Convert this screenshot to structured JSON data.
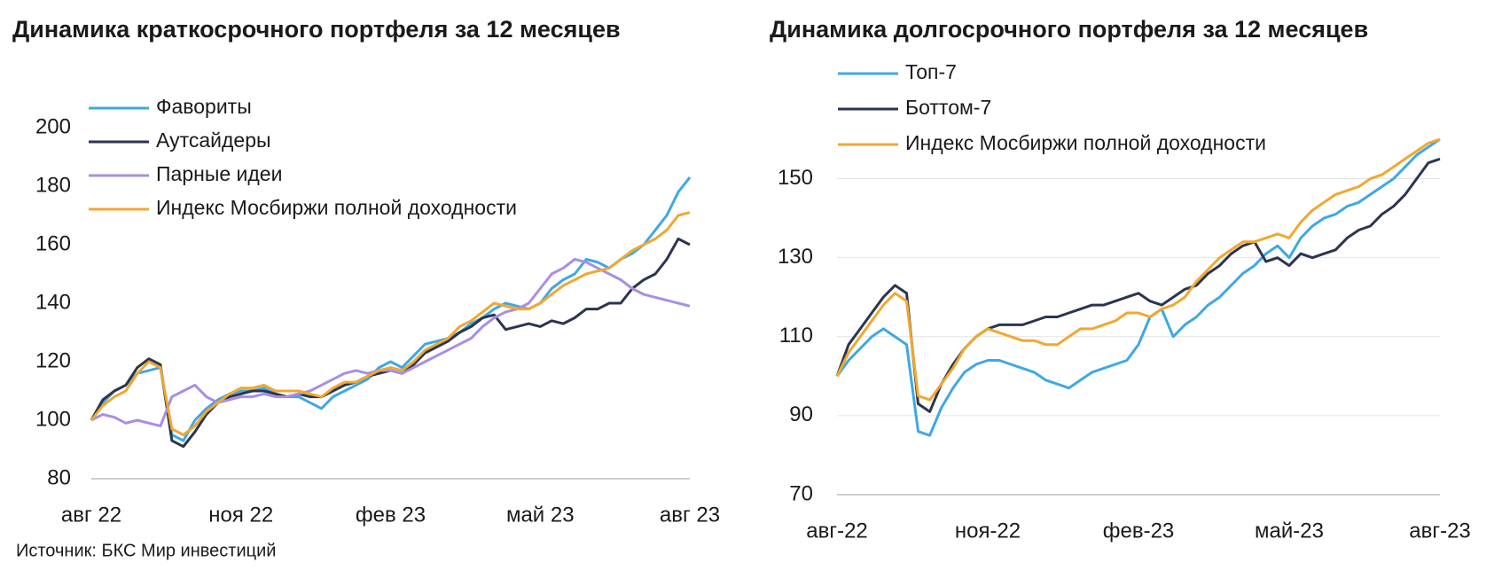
{
  "chart_data": [
    {
      "type": "line",
      "title": "Динамика краткосрочного портфеля за 12 месяцев",
      "categories": [
        "авг 22",
        null,
        null,
        null,
        null,
        null,
        null,
        null,
        null,
        null,
        null,
        null,
        null,
        "ноя 22",
        null,
        null,
        null,
        null,
        null,
        null,
        null,
        null,
        null,
        null,
        null,
        null,
        "фев 23",
        null,
        null,
        null,
        null,
        null,
        null,
        null,
        null,
        null,
        null,
        null,
        null,
        "май 23",
        null,
        null,
        null,
        null,
        null,
        null,
        null,
        null,
        null,
        null,
        null,
        null,
        "авг 23"
      ],
      "series": [
        {
          "name": "Фавориты",
          "color": "#3ea8e5",
          "values": [
            100,
            106,
            110,
            112,
            116,
            117,
            118,
            95,
            93,
            100,
            104,
            107,
            109,
            110,
            110,
            111,
            109,
            108,
            108,
            106,
            104,
            108,
            110,
            112,
            114,
            118,
            120,
            118,
            122,
            126,
            127,
            128,
            130,
            133,
            135,
            138,
            140,
            139,
            138,
            140,
            145,
            148,
            150,
            155,
            154,
            152,
            155,
            157,
            160,
            165,
            170,
            178,
            183
          ]
        },
        {
          "name": "Аутсайдеры",
          "color": "#2b3550",
          "values": [
            100,
            107,
            110,
            112,
            118,
            121,
            119,
            93,
            91,
            96,
            102,
            106,
            108,
            109,
            110,
            110,
            109,
            108,
            109,
            108,
            108,
            110,
            112,
            113,
            115,
            116,
            117,
            116,
            119,
            123,
            125,
            127,
            130,
            132,
            135,
            136,
            131,
            132,
            133,
            132,
            134,
            133,
            135,
            138,
            138,
            140,
            140,
            145,
            148,
            150,
            155,
            162,
            160
          ]
        },
        {
          "name": "Парные идеи",
          "color": "#a88ee6",
          "values": [
            100,
            102,
            101,
            99,
            100,
            99,
            98,
            108,
            110,
            112,
            108,
            106,
            107,
            108,
            108,
            109,
            108,
            108,
            109,
            110,
            112,
            114,
            116,
            117,
            116,
            117,
            117,
            116,
            118,
            120,
            122,
            124,
            126,
            128,
            132,
            135,
            137,
            138,
            140,
            145,
            150,
            152,
            155,
            154,
            152,
            150,
            148,
            145,
            143,
            142,
            141,
            140,
            139
          ]
        },
        {
          "name": "Индекс Мосбиржи полной доходности",
          "color": "#f0a830",
          "values": [
            100,
            105,
            108,
            110,
            116,
            120,
            118,
            97,
            95,
            98,
            103,
            106,
            109,
            111,
            111,
            112,
            110,
            110,
            110,
            109,
            108,
            111,
            113,
            113,
            115,
            117,
            118,
            117,
            120,
            124,
            126,
            128,
            132,
            134,
            137,
            140,
            139,
            138,
            138,
            140,
            143,
            146,
            148,
            150,
            151,
            152,
            155,
            158,
            160,
            162,
            165,
            170,
            171
          ]
        }
      ],
      "ylim": [
        80,
        200
      ],
      "yticks": [
        80,
        100,
        120,
        140,
        160,
        180,
        200
      ],
      "grid": false,
      "source": "Источник: БКС Мир инвестиций"
    },
    {
      "type": "line",
      "title": "Динамика долгосрочного портфеля за 12 месяцев",
      "categories": [
        "авг-22",
        null,
        null,
        null,
        null,
        null,
        null,
        null,
        null,
        null,
        null,
        null,
        null,
        "ноя-22",
        null,
        null,
        null,
        null,
        null,
        null,
        null,
        null,
        null,
        null,
        null,
        null,
        "фев-23",
        null,
        null,
        null,
        null,
        null,
        null,
        null,
        null,
        null,
        null,
        null,
        null,
        "май-23",
        null,
        null,
        null,
        null,
        null,
        null,
        null,
        null,
        null,
        null,
        null,
        null,
        "авг-23"
      ],
      "series": [
        {
          "name": "Топ-7",
          "color": "#3ea8e5",
          "values": [
            100,
            104,
            107,
            110,
            112,
            110,
            108,
            86,
            85,
            92,
            97,
            101,
            103,
            104,
            104,
            103,
            102,
            101,
            99,
            98,
            97,
            99,
            101,
            102,
            103,
            104,
            108,
            115,
            117,
            110,
            113,
            115,
            118,
            120,
            123,
            126,
            128,
            131,
            133,
            130,
            135,
            138,
            140,
            141,
            143,
            144,
            146,
            148,
            150,
            153,
            156,
            158,
            160
          ]
        },
        {
          "name": "Боттом-7",
          "color": "#2b3550",
          "values": [
            100,
            108,
            112,
            116,
            120,
            123,
            121,
            93,
            91,
            98,
            103,
            107,
            110,
            112,
            113,
            113,
            113,
            114,
            115,
            115,
            116,
            117,
            118,
            118,
            119,
            120,
            121,
            119,
            118,
            120,
            122,
            123,
            126,
            128,
            131,
            133,
            134,
            129,
            130,
            128,
            131,
            130,
            131,
            132,
            135,
            137,
            138,
            141,
            143,
            146,
            150,
            154,
            155
          ]
        },
        {
          "name": "Индекс Мосбиржи полной доходности",
          "color": "#f0a830",
          "values": [
            100,
            106,
            110,
            114,
            118,
            121,
            119,
            95,
            94,
            98,
            102,
            107,
            110,
            112,
            111,
            110,
            109,
            109,
            108,
            108,
            110,
            112,
            112,
            113,
            114,
            116,
            116,
            115,
            117,
            118,
            120,
            124,
            127,
            130,
            132,
            134,
            134,
            135,
            136,
            135,
            139,
            142,
            144,
            146,
            147,
            148,
            150,
            151,
            153,
            155,
            157,
            159,
            160
          ]
        }
      ],
      "ylim": [
        70,
        160
      ],
      "yticks": [
        70,
        90,
        110,
        130,
        150
      ],
      "grid": true
    }
  ]
}
